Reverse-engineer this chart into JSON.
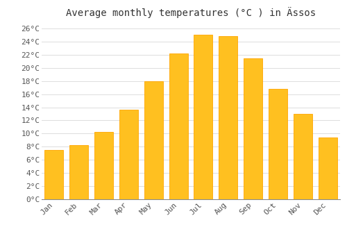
{
  "title": "Average monthly temperatures (°C ) in Ässos",
  "months": [
    "Jan",
    "Feb",
    "Mar",
    "Apr",
    "May",
    "Jun",
    "Jul",
    "Aug",
    "Sep",
    "Oct",
    "Nov",
    "Dec"
  ],
  "values": [
    7.5,
    8.2,
    10.2,
    13.6,
    18.0,
    22.2,
    25.0,
    24.8,
    21.5,
    16.8,
    13.0,
    9.4
  ],
  "bar_color": "#FFC020",
  "bar_edge_color": "#FFA500",
  "background_color": "#FFFFFF",
  "grid_color": "#DDDDDD",
  "text_color": "#555555",
  "ylim": [
    0,
    27
  ],
  "yticks": [
    0,
    2,
    4,
    6,
    8,
    10,
    12,
    14,
    16,
    18,
    20,
    22,
    24,
    26
  ],
  "title_fontsize": 10,
  "tick_fontsize": 8,
  "font_family": "monospace"
}
